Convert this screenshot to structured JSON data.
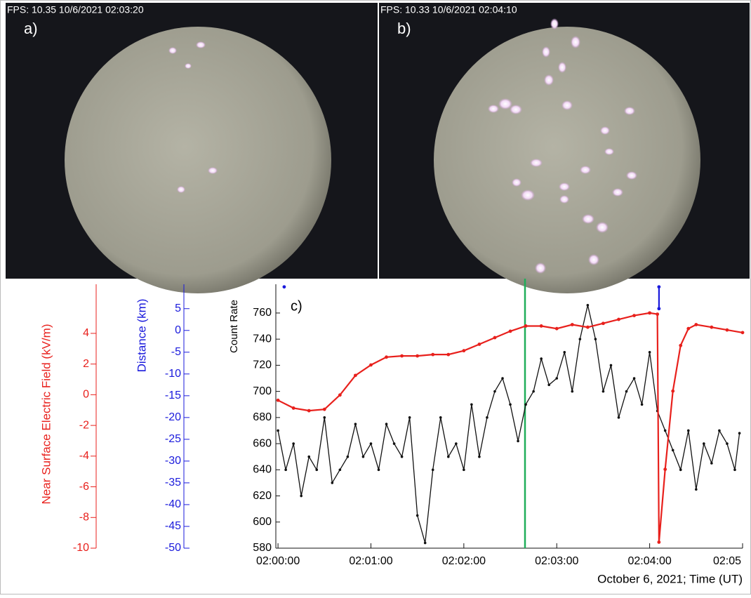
{
  "panels": [
    {
      "label": "a)",
      "stamp": "FPS: 10.35 10/6/2021 02:03:20"
    },
    {
      "label": "b)",
      "stamp": "FPS: 10.33 10/6/2021 02:04:10"
    }
  ],
  "chart_data": {
    "type": "line",
    "label": "c)",
    "x_title": "October 6, 2021; Time (UT)",
    "y_title": "Count Rate",
    "y2_title": "Near Surface Electric Field (kV/m)",
    "y3_title": "Distance (km)",
    "xlim": [
      -1.4,
      300
    ],
    "xticks": [
      {
        "value": 0,
        "label": "02:00:00"
      },
      {
        "value": 60,
        "label": "02:01:00"
      },
      {
        "value": 120,
        "label": "02:02:00"
      },
      {
        "value": 180,
        "label": "02:03:00"
      },
      {
        "value": 240,
        "label": "02:04:00"
      },
      {
        "value": 300,
        "label": "02:05"
      }
    ],
    "ylim": [
      580,
      782
    ],
    "yticks": [
      580,
      600,
      620,
      640,
      660,
      680,
      700,
      720,
      740,
      760
    ],
    "y2lim": [
      -10,
      7.2
    ],
    "y2ticks": [
      -10,
      -8,
      -6,
      -4,
      -2,
      0,
      2,
      4
    ],
    "y2_color": "#e8201c",
    "y3lim": [
      -50,
      10.6
    ],
    "y3ticks": [
      -50,
      -45,
      -40,
      -35,
      -30,
      -25,
      -20,
      -15,
      -10,
      -5,
      0,
      5
    ],
    "y3_color": "#1a1adc",
    "vlines": [
      {
        "x": 159.5,
        "color": "#1fae5a"
      }
    ],
    "series": [
      {
        "axis": "y",
        "color": "#111111",
        "marker": true,
        "x": [
          0,
          5,
          10,
          15,
          20,
          25,
          30,
          35,
          40,
          45,
          50,
          55,
          60,
          65,
          70,
          75,
          80,
          85,
          90,
          95,
          100,
          105,
          110,
          115,
          120,
          125,
          130,
          135,
          140,
          145,
          150,
          155,
          160,
          165,
          170,
          175,
          180,
          185,
          190,
          195,
          200,
          205,
          210,
          215,
          220,
          225,
          230,
          235,
          240,
          245,
          250,
          255,
          260,
          265,
          270,
          275,
          280,
          285,
          290,
          295,
          298
        ],
        "values": [
          670,
          640,
          660,
          620,
          650,
          640,
          680,
          630,
          640,
          650,
          675,
          650,
          660,
          640,
          675,
          660,
          650,
          680,
          605,
          584,
          640,
          680,
          650,
          660,
          640,
          690,
          650,
          680,
          700,
          710,
          690,
          662,
          690,
          700,
          725,
          705,
          710,
          730,
          700,
          740,
          766,
          740,
          700,
          720,
          680,
          700,
          710,
          690,
          730,
          685,
          670,
          655,
          640,
          670,
          625,
          660,
          645,
          670,
          660,
          640,
          668
        ]
      },
      {
        "axis": "y2",
        "color": "#e8201c",
        "marker": true,
        "x": [
          0,
          10,
          20,
          30,
          40,
          50,
          60,
          70,
          80,
          90,
          100,
          110,
          120,
          130,
          140,
          150,
          160,
          170,
          180,
          190,
          200,
          210,
          220,
          230,
          240,
          245,
          246,
          250,
          255,
          260,
          265,
          270,
          280,
          290,
          300
        ],
        "values": [
          -0.36,
          -0.87,
          -1.04,
          -0.95,
          -0.02,
          1.26,
          1.94,
          2.45,
          2.53,
          2.53,
          2.62,
          2.62,
          2.87,
          3.29,
          3.72,
          4.14,
          4.48,
          4.48,
          4.31,
          4.57,
          4.4,
          4.65,
          4.91,
          5.16,
          5.33,
          5.25,
          -9.61,
          -4.86,
          0.24,
          3.21,
          4.31,
          4.57,
          4.4,
          4.22,
          4.05
        ]
      },
      {
        "axis": "y3",
        "color": "#1a1adc",
        "marker": true,
        "x": [
          4,
          240,
          246,
          246
        ],
        "values": [
          10,
          null,
          10,
          5
        ]
      }
    ]
  }
}
